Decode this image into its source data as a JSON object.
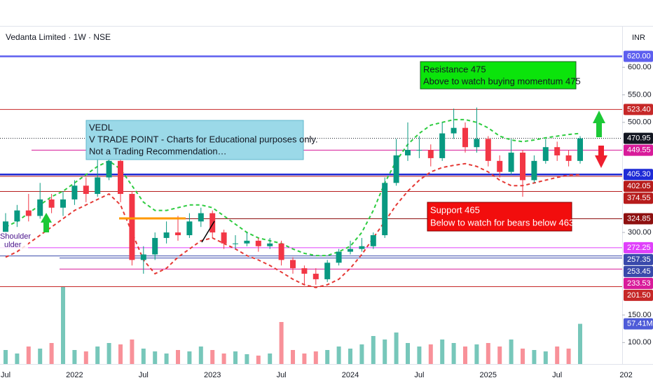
{
  "chart_data": {
    "type": "candlestick",
    "title": "Vedanta Limited · 1W · NSE",
    "currency": "INR",
    "categories": [
      "Jul",
      null,
      null,
      null,
      null,
      null,
      "2022",
      null,
      null,
      null,
      null,
      null,
      "Jul",
      null,
      null,
      null,
      null,
      null,
      "2023",
      null,
      null,
      null,
      null,
      null,
      "Jul",
      null,
      null,
      null,
      null,
      null,
      "2024",
      null,
      null,
      null,
      null,
      null,
      "Jul",
      null,
      null,
      null,
      null,
      null,
      "2025",
      null,
      null,
      null,
      null,
      null,
      "Jul",
      null,
      null,
      null,
      null,
      null,
      "202"
    ],
    "open": [
      300,
      320,
      340,
      330,
      360,
      345,
      360,
      385,
      370,
      400,
      430,
      370,
      250,
      260,
      290,
      300,
      295,
      320,
      335,
      300,
      280,
      280,
      285,
      275,
      280,
      250,
      235,
      225,
      215,
      245,
      265,
      270,
      275,
      295,
      390,
      440,
      450,
      450,
      435,
      480,
      490,
      455,
      470,
      430,
      410,
      445,
      395,
      430,
      455,
      440,
      430,
      null,
      null,
      null,
      null
    ],
    "high": [
      335,
      350,
      370,
      390,
      370,
      375,
      395,
      400,
      440,
      470,
      435,
      375,
      275,
      300,
      320,
      330,
      335,
      345,
      340,
      305,
      295,
      300,
      290,
      290,
      285,
      255,
      240,
      235,
      250,
      270,
      285,
      290,
      300,
      400,
      470,
      500,
      475,
      460,
      500,
      525,
      500,
      527,
      475,
      440,
      470,
      450,
      440,
      470,
      465,
      450,
      475,
      null,
      null,
      null,
      null
    ],
    "low": [
      290,
      310,
      320,
      325,
      335,
      330,
      350,
      355,
      365,
      395,
      355,
      240,
      225,
      250,
      280,
      285,
      290,
      310,
      290,
      270,
      270,
      275,
      265,
      270,
      240,
      225,
      205,
      205,
      210,
      240,
      260,
      265,
      270,
      290,
      385,
      430,
      435,
      420,
      430,
      470,
      445,
      445,
      420,
      400,
      405,
      365,
      390,
      425,
      430,
      420,
      425,
      null,
      null,
      null,
      null
    ],
    "close": [
      320,
      340,
      330,
      360,
      345,
      360,
      385,
      370,
      400,
      430,
      370,
      250,
      260,
      290,
      300,
      295,
      320,
      335,
      300,
      280,
      280,
      285,
      275,
      280,
      250,
      235,
      225,
      215,
      245,
      265,
      270,
      275,
      295,
      390,
      440,
      450,
      450,
      435,
      480,
      490,
      455,
      470,
      430,
      410,
      445,
      395,
      430,
      455,
      440,
      430,
      470.95,
      null,
      null,
      null,
      null
    ],
    "up_color": "#089981",
    "down_color": "#f23645",
    "volume": [
      20,
      15,
      25,
      22,
      30,
      110,
      20,
      18,
      25,
      30,
      28,
      35,
      22,
      18,
      15,
      20,
      18,
      25,
      20,
      15,
      18,
      14,
      12,
      15,
      60,
      20,
      15,
      18,
      20,
      25,
      22,
      28,
      40,
      35,
      45,
      30,
      25,
      28,
      35,
      30,
      25,
      28,
      30,
      25,
      35,
      22,
      20,
      18,
      25,
      22,
      57.41,
      null,
      null,
      null,
      null
    ],
    "volume_label": "57.41M",
    "vlim": [
      0,
      130
    ],
    "series": [
      {
        "color": "#2ecc40",
        "values": [
          310,
          320,
          335,
          350,
          365,
          375,
          390,
          405,
          420,
          430,
          415,
          385,
          355,
          340,
          340,
          345,
          350,
          350,
          345,
          330,
          315,
          300,
          290,
          285,
          280,
          270,
          262,
          258,
          258,
          265,
          275,
          300,
          340,
          390,
          430,
          460,
          480,
          495,
          500,
          505,
          505,
          500,
          490,
          475,
          468,
          465,
          468,
          472,
          475,
          478,
          480,
          null,
          null,
          null,
          null
        ]
      },
      {
        "color": "#e53935",
        "values": [
          255,
          265,
          280,
          295,
          310,
          325,
          340,
          350,
          360,
          370,
          350,
          300,
          250,
          225,
          235,
          255,
          270,
          285,
          290,
          280,
          270,
          258,
          250,
          240,
          228,
          215,
          205,
          200,
          205,
          215,
          235,
          260,
          290,
          320,
          350,
          375,
          395,
          410,
          418,
          422,
          425,
          420,
          410,
          395,
          385,
          385,
          390,
          395,
          400,
          404,
          405,
          null,
          null,
          null,
          null
        ]
      }
    ],
    "ylim": [
      61,
      674
    ],
    "yticks": [
      {
        "value": 600,
        "label": "600.00"
      },
      {
        "value": 550,
        "label": "550.00"
      },
      {
        "value": 500,
        "label": "500.00"
      },
      {
        "value": 300,
        "label": "300.00"
      },
      {
        "value": 150,
        "label": "150.00"
      },
      {
        "value": 100,
        "label": "100.00"
      }
    ],
    "levels": [
      {
        "value": 620,
        "label": "620.00",
        "color": "#5d5fef"
      },
      {
        "value": 523.4,
        "label": "523.40",
        "color": "#c62828"
      },
      {
        "value": 470.95,
        "label": "470.95",
        "color": "#131722"
      },
      {
        "value": 449.55,
        "label": "449.55",
        "color": "#d81b9a"
      },
      {
        "value": 405.3,
        "label": "405.30",
        "color": "#1e2bd6"
      },
      {
        "value": 402.05,
        "label": "402.05",
        "color": "#b71c1c"
      },
      {
        "value": 374.55,
        "label": "374.55",
        "color": "#b71c1c"
      },
      {
        "value": 324.85,
        "label": "324.85",
        "color": "#8e1010"
      },
      {
        "value": 272.25,
        "label": "272.25",
        "color": "#e040fb"
      },
      {
        "value": 257.35,
        "label": "257.35",
        "color": "#3949ab"
      },
      {
        "value": 253.45,
        "label": "253.45",
        "color": "#3949ab"
      },
      {
        "value": 233.53,
        "label": "233.53",
        "color": "#d81b9a"
      },
      {
        "value": 201.5,
        "label": "201.50",
        "color": "#c62828"
      }
    ],
    "annotations": {
      "vedl": [
        "VEDL",
        "V TRADE POINT - Charts for Educational purposes only.",
        "Not a Trading Recommendation…"
      ],
      "resistance": [
        "Resistance  475",
        "Above to watch buying momentum 475"
      ],
      "support": [
        "Support 465",
        "Below to watch for bears below 463"
      ],
      "pattern": [
        "Shoulder",
        "ulder"
      ]
    }
  }
}
